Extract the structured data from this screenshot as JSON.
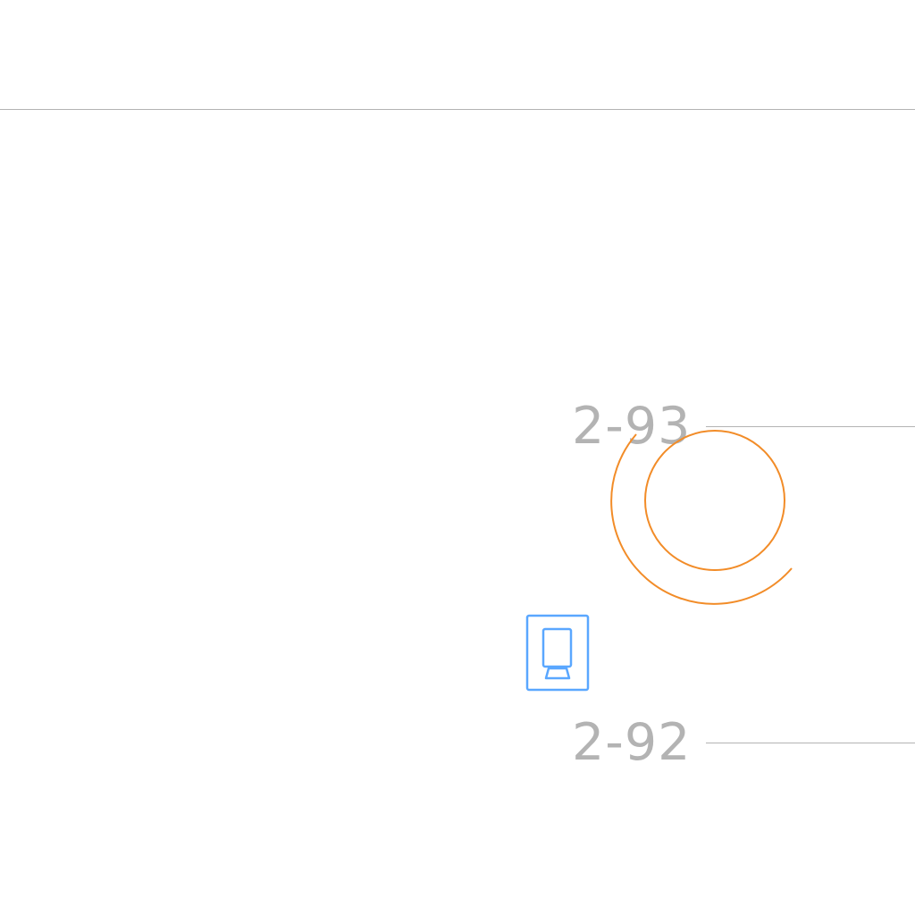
{
  "map": {
    "rooms": [
      {
        "id": "room-2-93",
        "label": "2-93"
      },
      {
        "id": "room-2-92",
        "label": "2-92"
      }
    ],
    "markers": {
      "location_marker": {
        "icon": "location-ring-icon",
        "color": "#f28c28"
      },
      "kiosk_marker": {
        "icon": "kiosk-icon",
        "color": "#5aa7ff"
      }
    },
    "colors": {
      "wall_line": "#b3b3b3",
      "label_text": "#b3b3b3",
      "background": "#ffffff"
    }
  }
}
